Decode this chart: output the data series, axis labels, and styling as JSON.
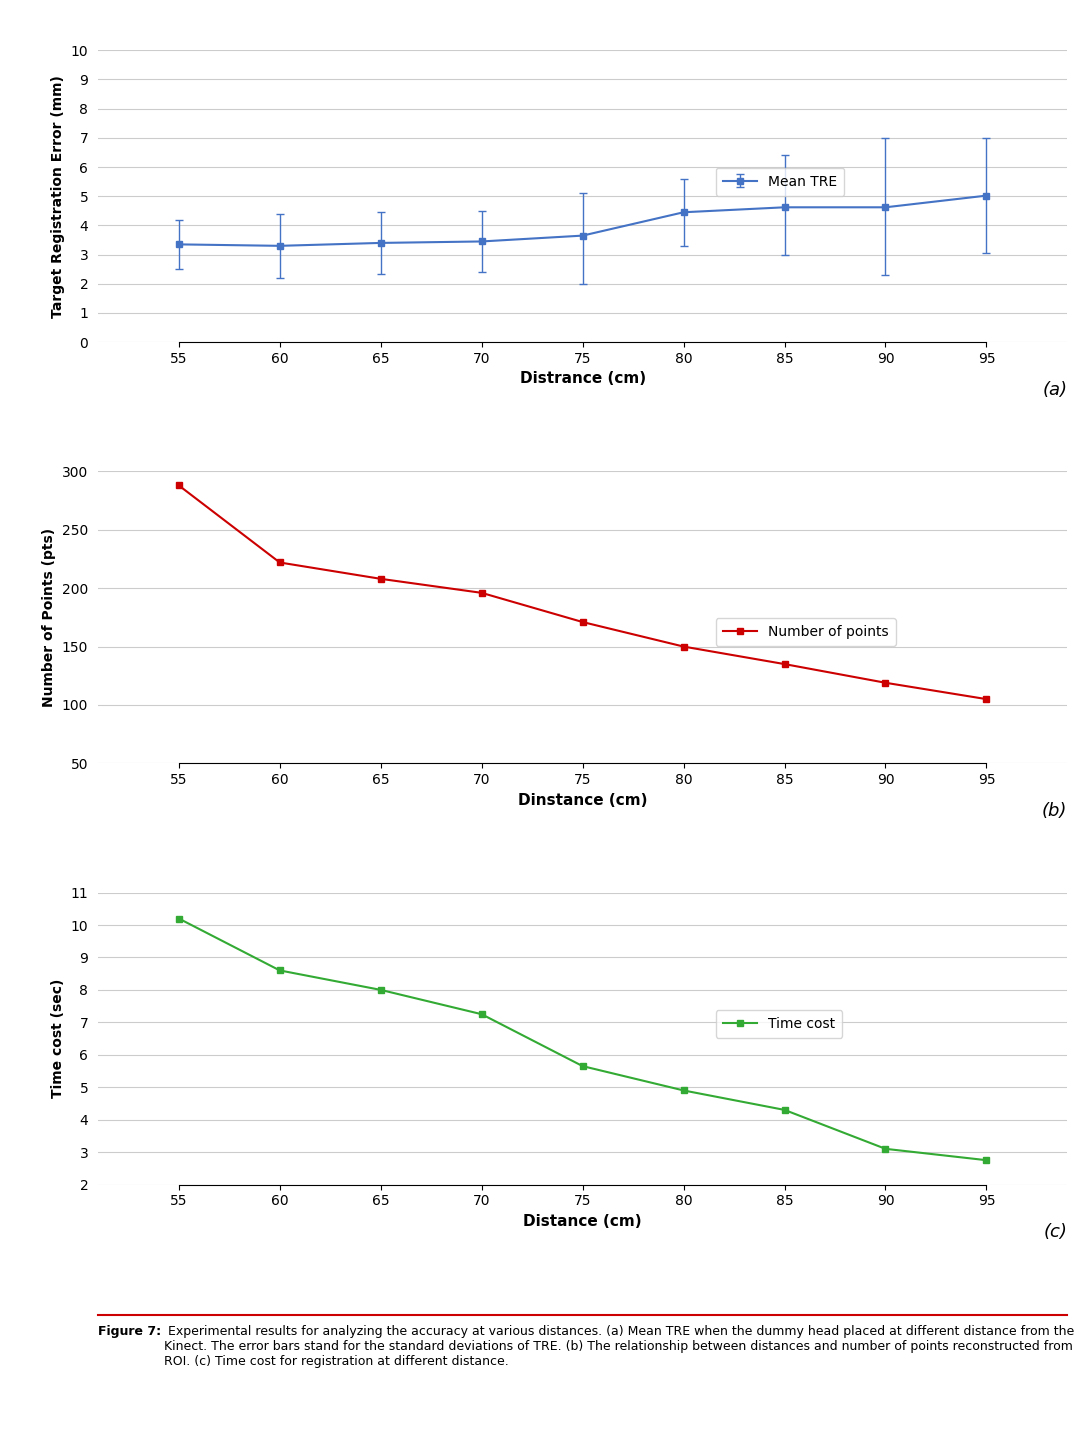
{
  "distances": [
    55,
    60,
    65,
    70,
    75,
    80,
    85,
    90,
    95
  ],
  "tre_mean": [
    3.35,
    3.3,
    3.4,
    3.45,
    3.65,
    4.45,
    4.62,
    4.62,
    5.02
  ],
  "tre_upper_err": [
    0.85,
    1.1,
    1.07,
    1.05,
    1.45,
    1.15,
    1.78,
    2.38,
    1.98
  ],
  "tre_lower_err": [
    0.85,
    1.1,
    1.07,
    1.05,
    1.65,
    1.15,
    1.62,
    2.32,
    1.98
  ],
  "tre_color": "#4472C4",
  "tre_ylabel": "Target Registration Error (mm)",
  "tre_xlabel": "Distrance (cm)",
  "tre_ylim": [
    0,
    10
  ],
  "tre_yticks": [
    0,
    1,
    2,
    3,
    4,
    5,
    6,
    7,
    8,
    9,
    10
  ],
  "tre_legend": "Mean TRE",
  "pts_values": [
    288,
    222,
    208,
    196,
    171,
    150,
    135,
    119,
    105
  ],
  "pts_color": "#CC0000",
  "pts_ylabel": "Number of Points (pts)",
  "pts_xlabel": "Dinstance (cm)",
  "pts_ylim": [
    50,
    300
  ],
  "pts_yticks": [
    50,
    100,
    150,
    200,
    250,
    300
  ],
  "pts_legend": "Number of points",
  "time_values": [
    10.2,
    8.6,
    8.0,
    7.25,
    5.65,
    4.9,
    4.3,
    3.1,
    2.75
  ],
  "time_color": "#33AA33",
  "time_ylabel": "Time cost (sec)",
  "time_xlabel": "Distance (cm)",
  "time_ylim": [
    2,
    11
  ],
  "time_yticks": [
    2,
    3,
    4,
    5,
    6,
    7,
    8,
    9,
    10,
    11
  ],
  "time_legend": "Time cost",
  "label_a": "(a)",
  "label_b": "(b)",
  "label_c": "(c)",
  "marker": "s",
  "markersize": 5,
  "linewidth": 1.5,
  "grid_color": "#CCCCCC",
  "background": "#FFFFFF",
  "caption_bold": "Figure 7:",
  "caption_rest": " Experimental results for analyzing the accuracy at various distances. (a) Mean TRE when the dummy head placed at different distance from the Kinect. The error bars stand for the standard deviations of TRE. (b) The relationship between distances and number of points reconstructed from ROI. (c) Time cost for registration at different distance."
}
